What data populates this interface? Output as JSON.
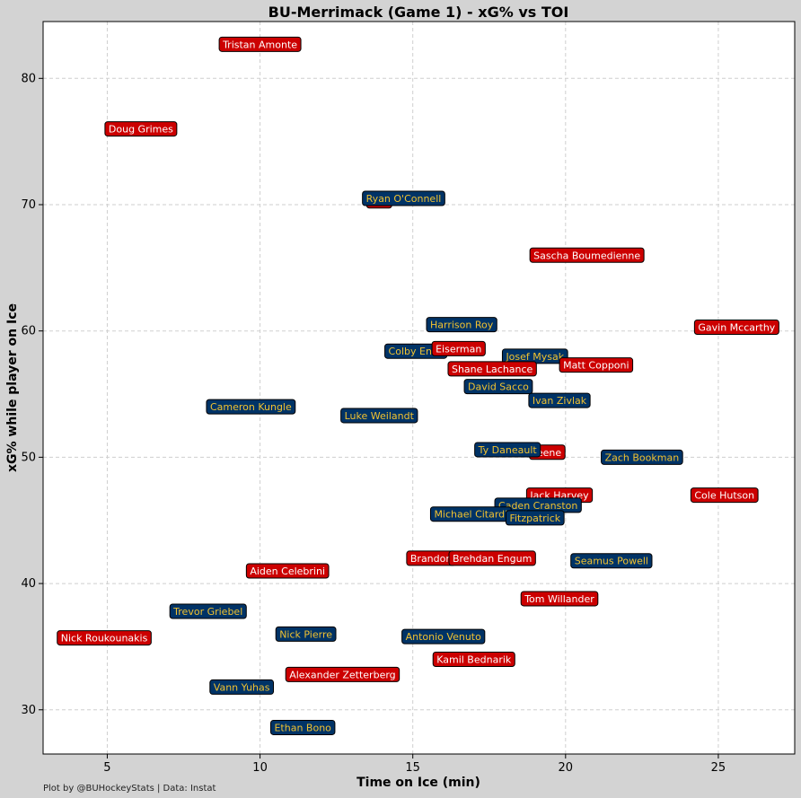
{
  "chart_data": {
    "type": "scatter",
    "title": "BU-Merrimack (Game 1) - xG% vs TOI",
    "xlabel": "Time on Ice (min)",
    "ylabel": "xG% while player on Ice",
    "footnote": "Plot by @BUHockeyStats | Data: Instat",
    "xlim": [
      2.9,
      27.5
    ],
    "ylim": [
      26.5,
      84.5
    ],
    "xticks": [
      5,
      10,
      15,
      20,
      25
    ],
    "yticks": [
      30,
      40,
      50,
      60,
      70,
      80
    ],
    "grid": true,
    "team_colors": {
      "BU": {
        "box": "#cc0000",
        "text": "#ffffff"
      },
      "Merrimack": {
        "box": "#003366",
        "text": "#f2c230"
      }
    },
    "points": [
      {
        "name": "Tristan Amonte",
        "team": "BU",
        "x": 10.0,
        "y": 82.7
      },
      {
        "name": "Doug Grimes",
        "team": "BU",
        "x": 6.1,
        "y": 76.0
      },
      {
        "name": "",
        "team": "BU",
        "x": 13.9,
        "y": 70.3
      },
      {
        "name": "Ryan O'Connell",
        "team": "Merrimack",
        "x": 14.7,
        "y": 70.5
      },
      {
        "name": "Sascha Boumedienne",
        "team": "BU",
        "x": 20.7,
        "y": 66.0
      },
      {
        "name": "Gavin Mccarthy",
        "team": "BU",
        "x": 25.6,
        "y": 60.3
      },
      {
        "name": "Harrison Roy",
        "team": "Merrimack",
        "x": 16.6,
        "y": 60.5
      },
      {
        "name": "Colby Enns",
        "team": "Merrimack",
        "x": 15.1,
        "y": 58.4
      },
      {
        "name": "Eiserman",
        "team": "BU",
        "x": 16.5,
        "y": 58.6
      },
      {
        "name": "Josef Mysak",
        "team": "Merrimack",
        "x": 19.0,
        "y": 58.0
      },
      {
        "name": "Matt Copponi",
        "team": "BU",
        "x": 21.0,
        "y": 57.3
      },
      {
        "name": "Shane Lachance",
        "team": "BU",
        "x": 17.6,
        "y": 57.0
      },
      {
        "name": "David Sacco",
        "team": "Merrimack",
        "x": 17.8,
        "y": 55.6
      },
      {
        "name": "Ivan Zivlak",
        "team": "Merrimack",
        "x": 19.8,
        "y": 54.5
      },
      {
        "name": "Cameron Kungle",
        "team": "Merrimack",
        "x": 9.7,
        "y": 54.0
      },
      {
        "name": "Luke Weilandt",
        "team": "Merrimack",
        "x": 13.9,
        "y": 53.3
      },
      {
        "name": "reene",
        "team": "BU",
        "x": 19.4,
        "y": 50.4
      },
      {
        "name": "Ty Daneault",
        "team": "Merrimack",
        "x": 18.1,
        "y": 50.6
      },
      {
        "name": "Zach Bookman",
        "team": "Merrimack",
        "x": 22.5,
        "y": 50.0
      },
      {
        "name": "Jack Harvey",
        "team": "BU",
        "x": 19.8,
        "y": 47.0
      },
      {
        "name": "Cole Hutson",
        "team": "BU",
        "x": 25.2,
        "y": 47.0
      },
      {
        "name": "Caden Cranston",
        "team": "Merrimack",
        "x": 19.1,
        "y": 46.2
      },
      {
        "name": "Michael Citardi",
        "team": "Merrimack",
        "x": 16.9,
        "y": 45.5
      },
      {
        "name": "Fitzpatrick",
        "team": "Merrimack",
        "x": 19.0,
        "y": 45.2
      },
      {
        "name": "Brandon",
        "team": "BU",
        "x": 15.6,
        "y": 42.0
      },
      {
        "name": "Brehdan Engum",
        "team": "BU",
        "x": 17.6,
        "y": 42.0
      },
      {
        "name": "Seamus Powell",
        "team": "Merrimack",
        "x": 21.5,
        "y": 41.8
      },
      {
        "name": "Aiden Celebrini",
        "team": "BU",
        "x": 10.9,
        "y": 41.0
      },
      {
        "name": "Tom Willander",
        "team": "BU",
        "x": 19.8,
        "y": 38.8
      },
      {
        "name": "Trevor Griebel",
        "team": "Merrimack",
        "x": 8.3,
        "y": 37.8
      },
      {
        "name": "Nick Roukounakis",
        "team": "BU",
        "x": 4.9,
        "y": 35.7
      },
      {
        "name": "Nick Pierre",
        "team": "Merrimack",
        "x": 11.5,
        "y": 36.0
      },
      {
        "name": "Antonio Venuto",
        "team": "Merrimack",
        "x": 16.0,
        "y": 35.8
      },
      {
        "name": "Kamil Bednarik",
        "team": "BU",
        "x": 17.0,
        "y": 34.0
      },
      {
        "name": "Alexander Zetterberg",
        "team": "BU",
        "x": 12.7,
        "y": 32.8
      },
      {
        "name": "Vann Yuhas",
        "team": "Merrimack",
        "x": 9.4,
        "y": 31.8
      },
      {
        "name": "Ethan Bono",
        "team": "Merrimack",
        "x": 11.4,
        "y": 28.6
      }
    ]
  }
}
